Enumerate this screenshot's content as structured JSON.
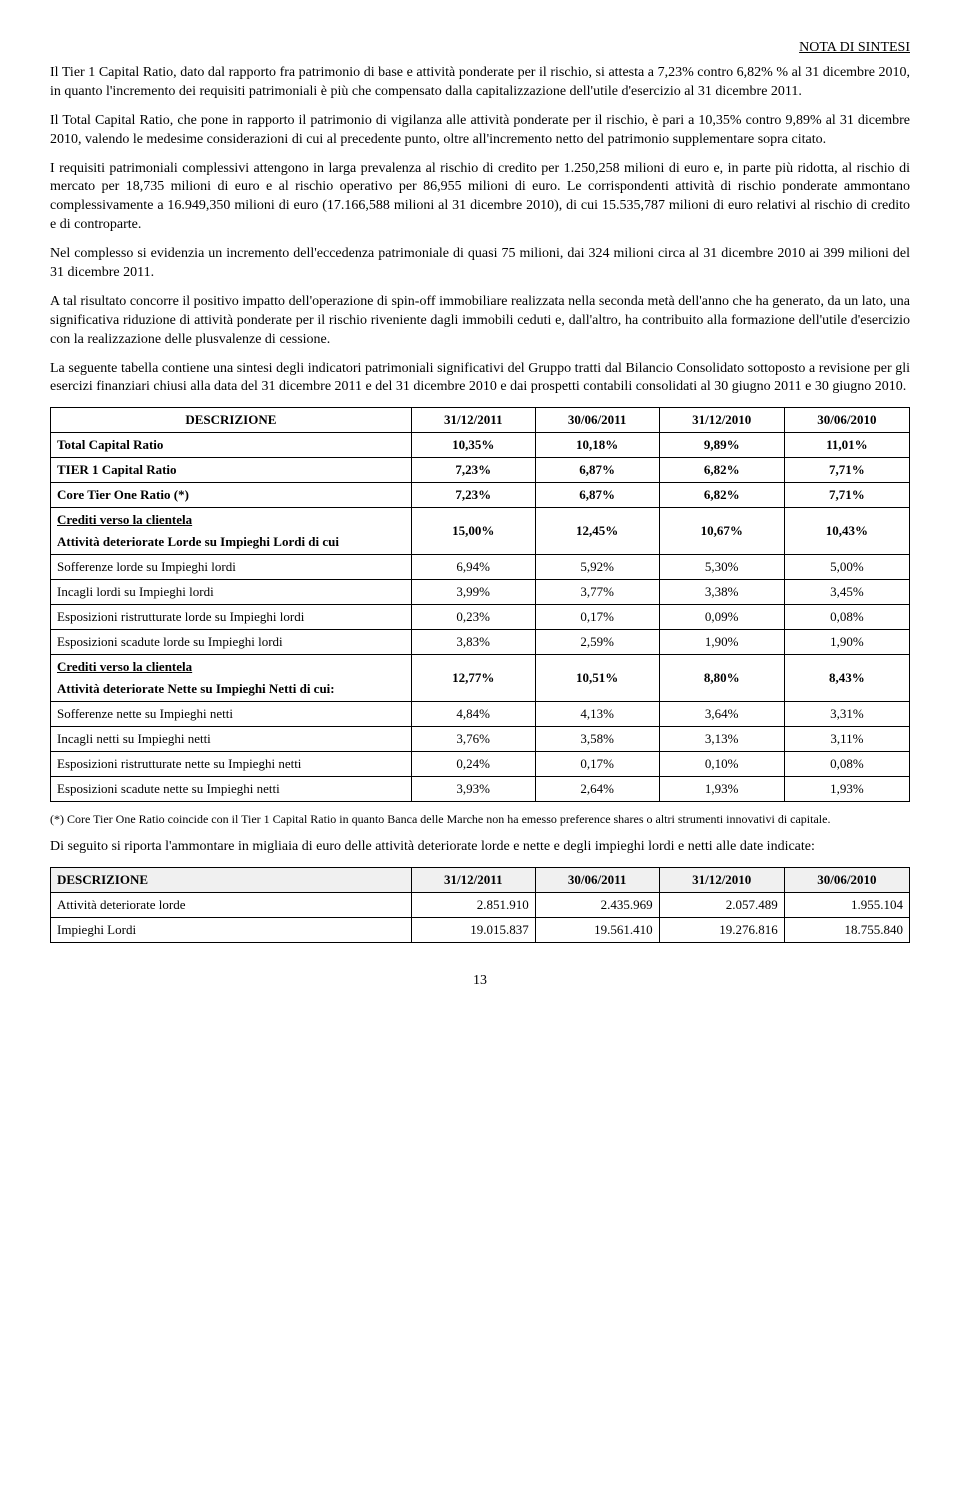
{
  "header": "NOTA DI SINTESI",
  "p1": "Il Tier 1 Capital Ratio, dato dal rapporto fra patrimonio di base e attività ponderate per il rischio, si attesta a 7,23% contro 6,82% % al 31 dicembre 2010, in quanto l'incremento dei requisiti patrimoniali è più che compensato dalla capitalizzazione dell'utile d'esercizio al 31 dicembre 2011.",
  "p2": "Il Total Capital Ratio, che pone in rapporto il patrimonio di vigilanza alle attività ponderate per il rischio, è pari a 10,35% contro 9,89% al 31 dicembre 2010, valendo le medesime considerazioni di cui al precedente punto, oltre all'incremento netto del patrimonio supplementare sopra citato.",
  "p3": "I requisiti patrimoniali complessivi attengono in larga prevalenza al rischio di credito per 1.250,258 milioni di euro e, in parte più ridotta, al rischio di mercato per 18,735 milioni di euro e al rischio operativo per 86,955 milioni di euro. Le corrispondenti attività di rischio ponderate ammontano complessivamente a 16.949,350 milioni di euro (17.166,588 milioni al 31 dicembre 2010), di cui 15.535,787 milioni di euro relativi al rischio di credito e di controparte.",
  "p4": "Nel complesso si evidenzia un incremento dell'eccedenza patrimoniale di quasi 75 milioni, dai 324 milioni circa al 31 dicembre 2010 ai 399 milioni del 31 dicembre 2011.",
  "p5": "A tal risultato concorre il positivo impatto dell'operazione di spin-off immobiliare realizzata nella seconda metà dell'anno che ha generato, da un lato, una significativa riduzione di attività ponderate per il rischio riveniente dagli immobili ceduti e, dall'altro, ha contribuito alla formazione dell'utile d'esercizio con la realizzazione delle plusvalenze di cessione.",
  "p6": "La seguente tabella contiene una sintesi degli indicatori patrimoniali significativi del Gruppo tratti dal Bilancio Consolidato sottoposto a revisione per gli esercizi finanziari chiusi alla data del 31 dicembre 2011  e del  31 dicembre 2010 e dai prospetti contabili consolidati al 30 giugno 2011 e 30 giugno 2010.",
  "table1": {
    "headers": [
      "DESCRIZIONE",
      "31/12/2011",
      "30/06/2011",
      "31/12/2010",
      "30/06/2010"
    ],
    "rows": [
      {
        "label": "Total Capital Ratio",
        "vals": [
          "10,35%",
          "10,18%",
          "9,89%",
          "11,01%"
        ],
        "bold": true
      },
      {
        "label": "TIER 1 Capital Ratio",
        "vals": [
          "7,23%",
          "6,87%",
          "6,82%",
          "7,71%"
        ],
        "bold": true
      },
      {
        "label": "Core  Tier  One Ratio (*)",
        "vals": [
          "7,23%",
          "6,87%",
          "6,82%",
          "7,71%"
        ],
        "bold": true
      },
      {
        "label": "Crediti verso la clientela",
        "vals": [
          "",
          "",
          "",
          ""
        ],
        "section": true
      },
      {
        "label": "Attività deteriorate Lorde su Impieghi Lordi di cui",
        "vals": [
          "15,00%",
          "12,45%",
          "10,67%",
          "10,43%"
        ],
        "bold": true,
        "merge_prev": true
      },
      {
        "label": "Sofferenze lorde  su Impieghi lordi",
        "vals": [
          "6,94%",
          "5,92%",
          "5,30%",
          "5,00%"
        ]
      },
      {
        "label": "Incagli lordi su Impieghi lordi",
        "vals": [
          "3,99%",
          "3,77%",
          "3,38%",
          "3,45%"
        ]
      },
      {
        "label": "Esposizioni ristrutturate lorde su Impieghi lordi",
        "vals": [
          "0,23%",
          "0,17%",
          "0,09%",
          "0,08%"
        ]
      },
      {
        "label": "Esposizioni scadute lorde su Impieghi lordi",
        "vals": [
          "3,83%",
          "2,59%",
          "1,90%",
          "1,90%"
        ]
      },
      {
        "label": "Crediti verso la clientela",
        "vals": [
          "",
          "",
          "",
          ""
        ],
        "section": true
      },
      {
        "label": "Attività deteriorate Nette su Impieghi Netti  di cui:",
        "vals": [
          "12,77%",
          "10,51%",
          "8,80%",
          "8,43%"
        ],
        "bold": true,
        "merge_prev": true
      },
      {
        "label": "Sofferenze nette  su Impieghi netti",
        "vals": [
          "4,84%",
          "4,13%",
          "3,64%",
          "3,31%"
        ]
      },
      {
        "label": "Incagli netti su Impieghi netti",
        "vals": [
          "3,76%",
          "3,58%",
          "3,13%",
          "3,11%"
        ]
      },
      {
        "label": "Esposizioni ristrutturate nette su Impieghi netti",
        "vals": [
          "0,24%",
          "0,17%",
          "0,10%",
          "0,08%"
        ]
      },
      {
        "label": "Esposizioni scadute nette su Impieghi netti",
        "vals": [
          "3,93%",
          "2,64%",
          "1,93%",
          "1,93%"
        ]
      }
    ]
  },
  "footnote1": "(*)  Core Tier One Ratio coincide con il Tier 1 Capital Ratio in quanto Banca delle Marche non ha emesso preference shares o altri strumenti innovativi di capitale.",
  "p7": "Di seguito si riporta  l'ammontare in migliaia di euro delle attività deteriorate lorde e nette e degli impieghi lordi e netti alle date indicate:",
  "table2": {
    "headers": [
      "DESCRIZIONE",
      "31/12/2011",
      "30/06/2011",
      "31/12/2010",
      "30/06/2010"
    ],
    "rows": [
      {
        "label": "Attività deteriorate lorde",
        "vals": [
          "2.851.910",
          "2.435.969",
          "2.057.489",
          "1.955.104"
        ]
      },
      {
        "label": "Impieghi Lordi",
        "vals": [
          "19.015.837",
          "19.561.410",
          "19.276.816",
          "18.755.840"
        ]
      }
    ]
  },
  "page_num": "13"
}
